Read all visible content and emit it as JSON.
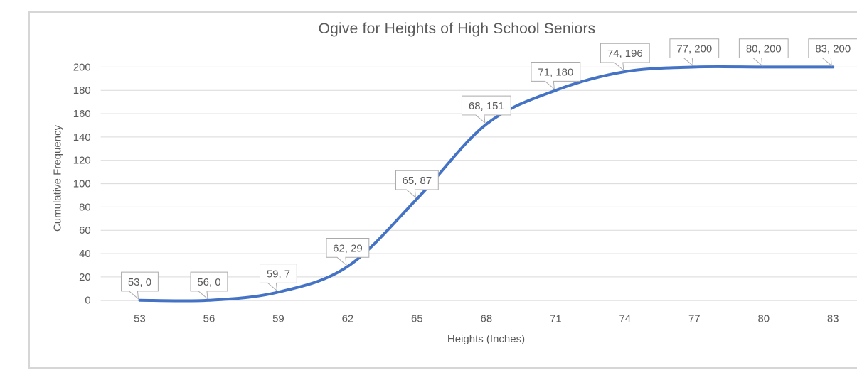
{
  "chart_data": {
    "type": "line",
    "title": "Ogive for Heights of High School Seniors",
    "xlabel": "Heights (Inches)",
    "ylabel": "Cumulative Frequency",
    "categories": [
      53,
      56,
      59,
      62,
      65,
      68,
      71,
      74,
      77,
      80,
      83
    ],
    "values": [
      0,
      0,
      7,
      29,
      87,
      151,
      180,
      196,
      200,
      200,
      200
    ],
    "point_labels": [
      "53, 0",
      "56, 0",
      "59, 7",
      "62, 29",
      "65, 87",
      "68, 151",
      "71, 180",
      "74, 196",
      "77, 200",
      "80, 200",
      "83, 200"
    ],
    "x_ticks": [
      "53",
      "56",
      "59",
      "62",
      "65",
      "68",
      "71",
      "74",
      "77",
      "80",
      "83"
    ],
    "y_ticks": [
      0,
      20,
      40,
      60,
      80,
      100,
      120,
      140,
      160,
      180,
      200
    ],
    "ylim": [
      0,
      200
    ],
    "grid": true,
    "legend": "none",
    "smooth_line": true,
    "colors": {
      "line": "#4472C4",
      "gridline": "#D9D9D9",
      "axis_line": "#BFBFBF",
      "text": "#595959",
      "callout_border": "#ABABAB",
      "callout_fill": "#FFFFFF",
      "frame_border": "#D6D6D6",
      "background": "#FFFFFF"
    }
  }
}
